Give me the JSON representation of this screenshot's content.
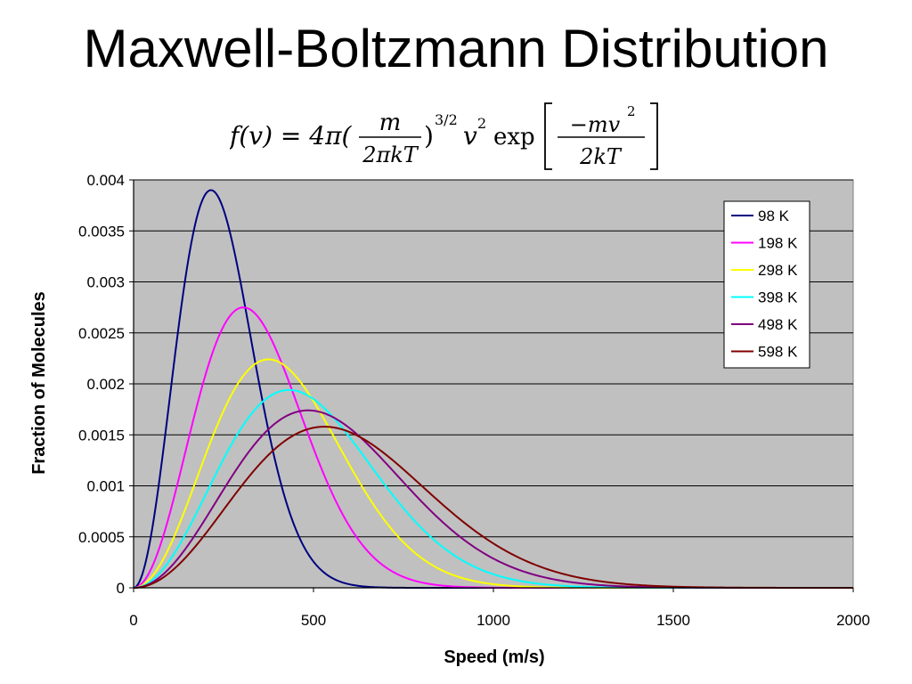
{
  "slide": {
    "title": "Maxwell-Boltzmann Distribution"
  },
  "formula": {
    "lhs": "f(v) = 4π(",
    "frac1_num": "m",
    "frac1_den": "2πkT",
    "close_paren": ")",
    "exp_32": "3/2",
    "v": "v",
    "v_exp": "2",
    "exp_word": "exp",
    "frac2_num": "−mv",
    "frac2_num_exp": "2",
    "frac2_den": "2kT"
  },
  "chart_data": {
    "type": "line",
    "title": "",
    "xlabel": "Speed (m/s)",
    "ylabel": "Fraction of Molecules",
    "xlim": [
      0,
      2000
    ],
    "ylim": [
      0,
      0.004
    ],
    "x_ticks": [
      "0",
      "500",
      "1000",
      "1500",
      "2000"
    ],
    "y_ticks": [
      "0",
      "0.0005",
      "0.001",
      "0.0015",
      "0.002",
      "0.0025",
      "0.003",
      "0.0035",
      "0.004"
    ],
    "grid": "horizontal",
    "plot_background": "#c0c0c0",
    "legend_position": "top-right",
    "x": [
      0,
      100,
      200,
      300,
      400,
      500,
      600,
      700,
      800,
      900,
      1000,
      1100,
      1200,
      1300,
      1400,
      1500,
      1600,
      1700,
      1800,
      1900,
      2000
    ],
    "series": [
      {
        "name": "98 K",
        "color": "#000080",
        "peak_x": 215,
        "peak_y": 0.0039
      },
      {
        "name": "198 K",
        "color": "#ff00ff",
        "peak_x": 305,
        "peak_y": 0.00275
      },
      {
        "name": "298 K",
        "color": "#ffff00",
        "peak_x": 375,
        "peak_y": 0.00224
      },
      {
        "name": "398 K",
        "color": "#00ffff",
        "peak_x": 432,
        "peak_y": 0.00194
      },
      {
        "name": "498 K",
        "color": "#800080",
        "peak_x": 485,
        "peak_y": 0.00174
      },
      {
        "name": "598 K",
        "color": "#800000",
        "peak_x": 530,
        "peak_y": 0.00158
      }
    ]
  }
}
